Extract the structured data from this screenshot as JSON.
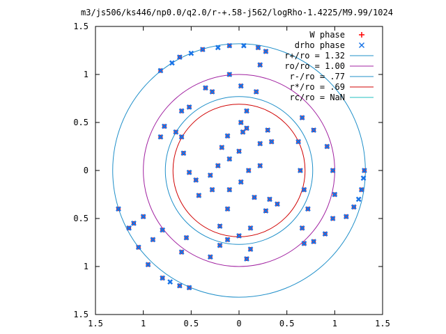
{
  "chart_data": {
    "type": "scatter",
    "title": "m3/js506/ks446/np0.0/q2.0/r-+.58-j562/logRho-1.4225/M9.99/1024",
    "xlabel": "",
    "ylabel": "",
    "xlim": [
      -1.5,
      1.5
    ],
    "ylim": [
      -1.5,
      1.5
    ],
    "x_tick_values": [
      -1.5,
      -1,
      -0.5,
      0,
      0.5,
      1,
      1.5
    ],
    "x_tick_labels": [
      "1.5",
      "1",
      "0.5",
      "0",
      "0.5",
      "1",
      "1.5"
    ],
    "y_tick_values": [
      1.5,
      1,
      0.5,
      0,
      -0.5,
      -1,
      -1.5
    ],
    "y_tick_labels": [
      "1.5",
      "1",
      "0.5",
      "0",
      "0.5",
      "1",
      "1.5"
    ],
    "grid": false,
    "legend_position": "top-right",
    "series": [
      {
        "name": "W phase",
        "kind": "points",
        "marker": "plus",
        "color": "#ff0000",
        "points": [
          [
            -0.82,
            1.04
          ],
          [
            -0.62,
            1.18
          ],
          [
            -0.38,
            1.26
          ],
          [
            -0.1,
            1.3
          ],
          [
            0.2,
            1.28
          ],
          [
            0.28,
            1.24
          ],
          [
            0.22,
            1.1
          ],
          [
            -0.1,
            1.0
          ],
          [
            -0.35,
            0.86
          ],
          [
            -0.6,
            0.62
          ],
          [
            -0.78,
            0.46
          ],
          [
            -0.82,
            0.35
          ],
          [
            -0.66,
            0.4
          ],
          [
            -0.52,
            0.66
          ],
          [
            -0.28,
            0.82
          ],
          [
            0.02,
            0.88
          ],
          [
            0.18,
            0.82
          ],
          [
            0.08,
            0.62
          ],
          [
            0.02,
            0.5
          ],
          [
            0.04,
            0.4
          ],
          [
            -0.12,
            0.36
          ],
          [
            -0.18,
            0.24
          ],
          [
            -0.1,
            0.12
          ],
          [
            -0.22,
            0.05
          ],
          [
            -0.3,
            -0.05
          ],
          [
            -0.45,
            -0.1
          ],
          [
            -0.52,
            -0.02
          ],
          [
            -0.58,
            0.18
          ],
          [
            -0.6,
            0.35
          ],
          [
            0.0,
            0.2
          ],
          [
            0.08,
            0.44
          ],
          [
            0.3,
            0.42
          ],
          [
            0.34,
            0.3
          ],
          [
            0.22,
            0.28
          ],
          [
            0.22,
            0.05
          ],
          [
            0.1,
            0.0
          ],
          [
            0.02,
            -0.12
          ],
          [
            0.16,
            -0.28
          ],
          [
            0.32,
            -0.3
          ],
          [
            0.4,
            -0.35
          ],
          [
            0.28,
            -0.42
          ],
          [
            0.12,
            -0.6
          ],
          [
            0.0,
            -0.68
          ],
          [
            -0.12,
            -0.72
          ],
          [
            -0.2,
            -0.58
          ],
          [
            -0.12,
            -0.4
          ],
          [
            -0.1,
            -0.2
          ],
          [
            -0.28,
            -0.2
          ],
          [
            -0.42,
            -0.26
          ],
          [
            0.66,
            0.55
          ],
          [
            0.78,
            0.42
          ],
          [
            0.92,
            0.25
          ],
          [
            0.98,
            0.0
          ],
          [
            1.0,
            -0.25
          ],
          [
            0.98,
            -0.5
          ],
          [
            0.9,
            -0.66
          ],
          [
            0.78,
            -0.74
          ],
          [
            0.68,
            -0.76
          ],
          [
            0.66,
            -0.6
          ],
          [
            0.72,
            -0.4
          ],
          [
            0.68,
            -0.2
          ],
          [
            0.64,
            0.0
          ],
          [
            0.62,
            0.3
          ],
          [
            1.12,
            -0.48
          ],
          [
            1.2,
            -0.38
          ],
          [
            1.28,
            -0.2
          ],
          [
            1.31,
            0.0
          ],
          [
            -1.26,
            -0.4
          ],
          [
            -1.1,
            -0.55
          ],
          [
            -0.9,
            -0.72
          ],
          [
            -0.6,
            -0.85
          ],
          [
            -0.3,
            -0.9
          ],
          [
            0.08,
            -0.92
          ],
          [
            0.12,
            -0.82
          ],
          [
            -0.2,
            -0.78
          ],
          [
            -0.55,
            -0.7
          ],
          [
            -0.8,
            -0.62
          ],
          [
            -1.0,
            -0.48
          ],
          [
            -1.15,
            -0.6
          ],
          [
            -1.05,
            -0.8
          ],
          [
            -0.95,
            -0.98
          ],
          [
            -0.8,
            -1.12
          ],
          [
            -0.62,
            -1.2
          ],
          [
            -0.52,
            -1.22
          ]
        ]
      },
      {
        "name": "drho phase",
        "kind": "points",
        "marker": "cross",
        "color": "#1a74e6",
        "points": [
          [
            -0.82,
            1.04
          ],
          [
            -0.7,
            1.12
          ],
          [
            -0.62,
            1.18
          ],
          [
            -0.5,
            1.22
          ],
          [
            -0.38,
            1.26
          ],
          [
            -0.22,
            1.28
          ],
          [
            -0.1,
            1.3
          ],
          [
            0.05,
            1.3
          ],
          [
            0.2,
            1.28
          ],
          [
            0.28,
            1.24
          ],
          [
            0.22,
            1.1
          ],
          [
            -0.1,
            1.0
          ],
          [
            -0.35,
            0.86
          ],
          [
            -0.6,
            0.62
          ],
          [
            -0.78,
            0.46
          ],
          [
            -0.82,
            0.35
          ],
          [
            -0.66,
            0.4
          ],
          [
            -0.52,
            0.66
          ],
          [
            -0.28,
            0.82
          ],
          [
            0.02,
            0.88
          ],
          [
            0.18,
            0.82
          ],
          [
            0.08,
            0.62
          ],
          [
            0.02,
            0.5
          ],
          [
            0.04,
            0.4
          ],
          [
            -0.12,
            0.36
          ],
          [
            -0.18,
            0.24
          ],
          [
            -0.1,
            0.12
          ],
          [
            -0.22,
            0.05
          ],
          [
            -0.3,
            -0.05
          ],
          [
            -0.45,
            -0.1
          ],
          [
            -0.52,
            -0.02
          ],
          [
            -0.58,
            0.18
          ],
          [
            -0.6,
            0.35
          ],
          [
            0.0,
            0.2
          ],
          [
            0.08,
            0.44
          ],
          [
            0.3,
            0.42
          ],
          [
            0.34,
            0.3
          ],
          [
            0.22,
            0.28
          ],
          [
            0.22,
            0.05
          ],
          [
            0.1,
            0.0
          ],
          [
            0.02,
            -0.12
          ],
          [
            0.16,
            -0.28
          ],
          [
            0.32,
            -0.3
          ],
          [
            0.4,
            -0.35
          ],
          [
            0.28,
            -0.42
          ],
          [
            0.12,
            -0.6
          ],
          [
            0.0,
            -0.68
          ],
          [
            -0.12,
            -0.72
          ],
          [
            -0.2,
            -0.58
          ],
          [
            -0.12,
            -0.4
          ],
          [
            -0.1,
            -0.2
          ],
          [
            -0.28,
            -0.2
          ],
          [
            -0.42,
            -0.26
          ],
          [
            0.66,
            0.55
          ],
          [
            0.78,
            0.42
          ],
          [
            0.92,
            0.25
          ],
          [
            0.98,
            0.0
          ],
          [
            1.0,
            -0.25
          ],
          [
            0.98,
            -0.5
          ],
          [
            0.9,
            -0.66
          ],
          [
            0.78,
            -0.74
          ],
          [
            0.68,
            -0.76
          ],
          [
            0.66,
            -0.6
          ],
          [
            0.72,
            -0.4
          ],
          [
            0.68,
            -0.2
          ],
          [
            0.64,
            0.0
          ],
          [
            0.62,
            0.3
          ],
          [
            1.12,
            -0.48
          ],
          [
            1.2,
            -0.38
          ],
          [
            1.25,
            -0.3
          ],
          [
            1.28,
            -0.2
          ],
          [
            1.3,
            -0.08
          ],
          [
            1.31,
            0.0
          ],
          [
            -1.26,
            -0.4
          ],
          [
            -1.1,
            -0.55
          ],
          [
            -0.9,
            -0.72
          ],
          [
            -0.6,
            -0.85
          ],
          [
            -0.3,
            -0.9
          ],
          [
            0.08,
            -0.92
          ],
          [
            0.12,
            -0.82
          ],
          [
            -0.2,
            -0.78
          ],
          [
            -0.55,
            -0.7
          ],
          [
            -0.8,
            -0.62
          ],
          [
            -1.0,
            -0.48
          ],
          [
            -1.15,
            -0.6
          ],
          [
            -1.05,
            -0.8
          ],
          [
            -0.95,
            -0.98
          ],
          [
            -0.8,
            -1.12
          ],
          [
            -0.72,
            -1.16
          ],
          [
            -0.62,
            -1.2
          ],
          [
            -0.52,
            -1.22
          ]
        ]
      },
      {
        "name": "r+/ro = 1.32",
        "kind": "circle",
        "radius": 1.32,
        "color": "#1f8fc9"
      },
      {
        "name": "ro/ro = 1.00",
        "kind": "circle",
        "radius": 1.0,
        "color": "#a020a0"
      },
      {
        "name": "r-/ro = .77",
        "kind": "circle",
        "radius": 0.77,
        "color": "#1f8fc9"
      },
      {
        "name": "r*/ro = .69",
        "kind": "circle",
        "radius": 0.69,
        "color": "#d00000"
      },
      {
        "name": "rc/ro = NaN",
        "kind": "circle",
        "radius": null,
        "color": "#20c0c0"
      }
    ]
  }
}
